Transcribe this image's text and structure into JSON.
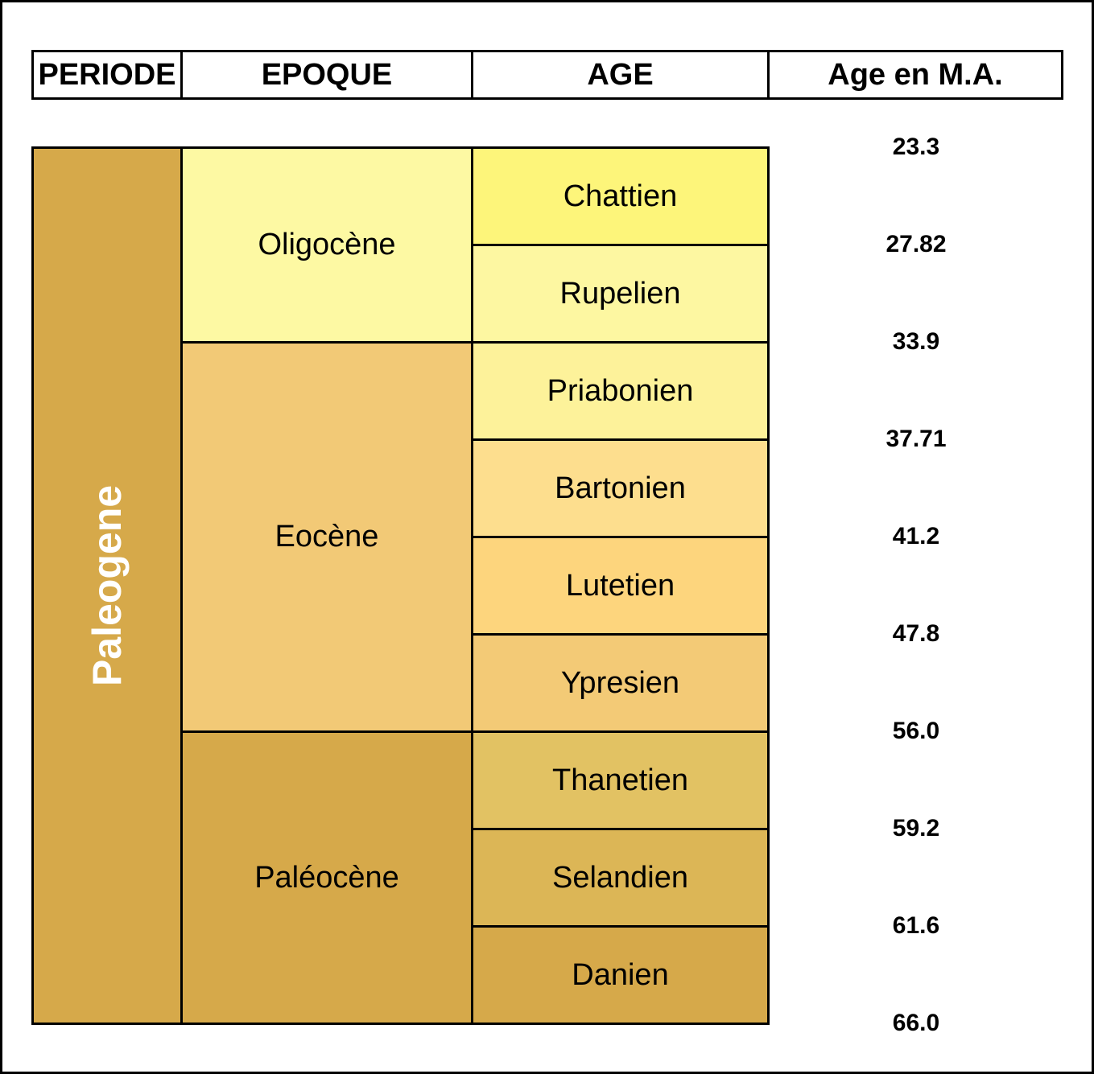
{
  "headers": {
    "periode": "PERIODE",
    "epoque": "EPOQUE",
    "age": "AGE",
    "age_ma": "Age en M.A."
  },
  "period": {
    "label": "Paleogene",
    "color": "#D6A94A"
  },
  "epochs": [
    {
      "label": "Oligocène",
      "color": "#FDF9A3"
    },
    {
      "label": "Eocène",
      "color": "#F2C976"
    },
    {
      "label": "Paléocène",
      "color": "#D6A94A"
    }
  ],
  "ages": [
    {
      "label": "Chattien",
      "color": "#FDF57A"
    },
    {
      "label": "Rupelien",
      "color": "#FDF7A1"
    },
    {
      "label": "Priabonien",
      "color": "#FDF29A"
    },
    {
      "label": "Bartonien",
      "color": "#FDDE8E"
    },
    {
      "label": "Lutetien",
      "color": "#FDD57D"
    },
    {
      "label": "Ypresien",
      "color": "#F3CA76"
    },
    {
      "label": "Thanetien",
      "color": "#E2C263"
    },
    {
      "label": "Selandien",
      "color": "#DCB656"
    },
    {
      "label": "Danien",
      "color": "#D6A94A"
    }
  ],
  "boundaries": [
    "23.3",
    "27.82",
    "33.9",
    "37.71",
    "41.2",
    "47.8",
    "56.0",
    "59.2",
    "61.6",
    "66.0"
  ]
}
